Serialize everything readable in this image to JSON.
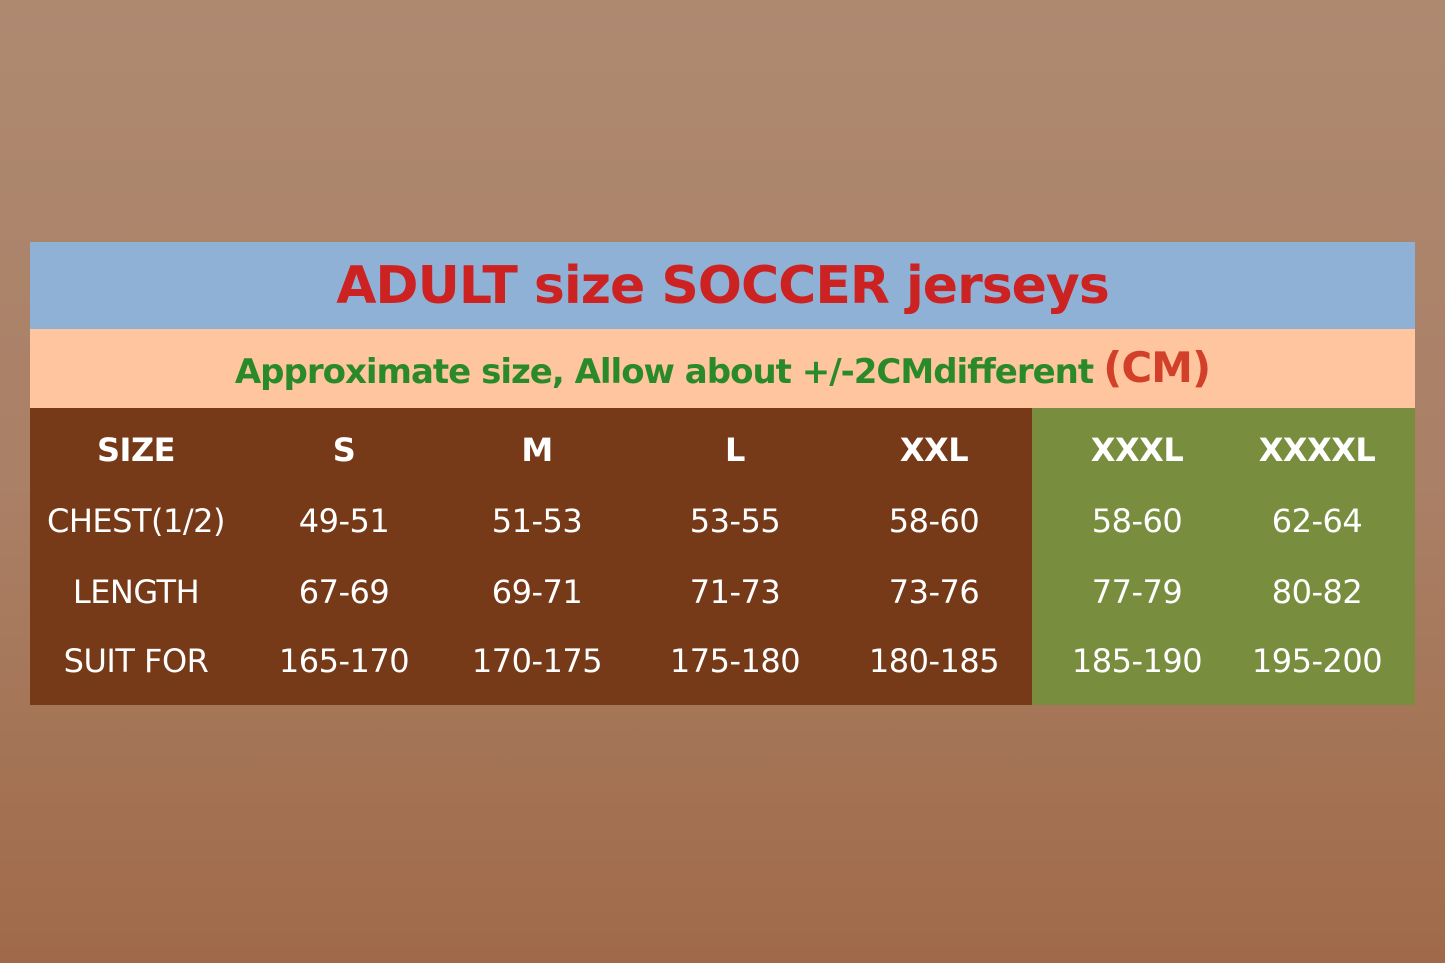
{
  "title": "ADULT size SOCCER jerseys",
  "subtitle": "Approximate size, Allow about +/-2CMdifferent",
  "unit": "(CM)",
  "colors": {
    "title_band": "#8fb1d5",
    "subtitle_band": "#fec59e",
    "table_main": "#773a19",
    "table_large_sizes": "#788e3e",
    "title_text": "#cc2222",
    "subtitle_text": "#2a8a2a"
  },
  "table": {
    "header": [
      "SIZE",
      "S",
      "M",
      "L",
      "XXL",
      "XXXL",
      "XXXXL"
    ],
    "rows": [
      [
        "CHEST(1/2)",
        "49-51",
        "51-53",
        "53-55",
        "58-60",
        "58-60",
        "62-64"
      ],
      [
        "LENGTH",
        "67-69",
        "69-71",
        "71-73",
        "73-76",
        "77-79",
        "80-82"
      ],
      [
        "SUIT FOR",
        "165-170",
        "170-175",
        "175-180",
        "180-185",
        "185-190",
        "195-200"
      ]
    ]
  }
}
